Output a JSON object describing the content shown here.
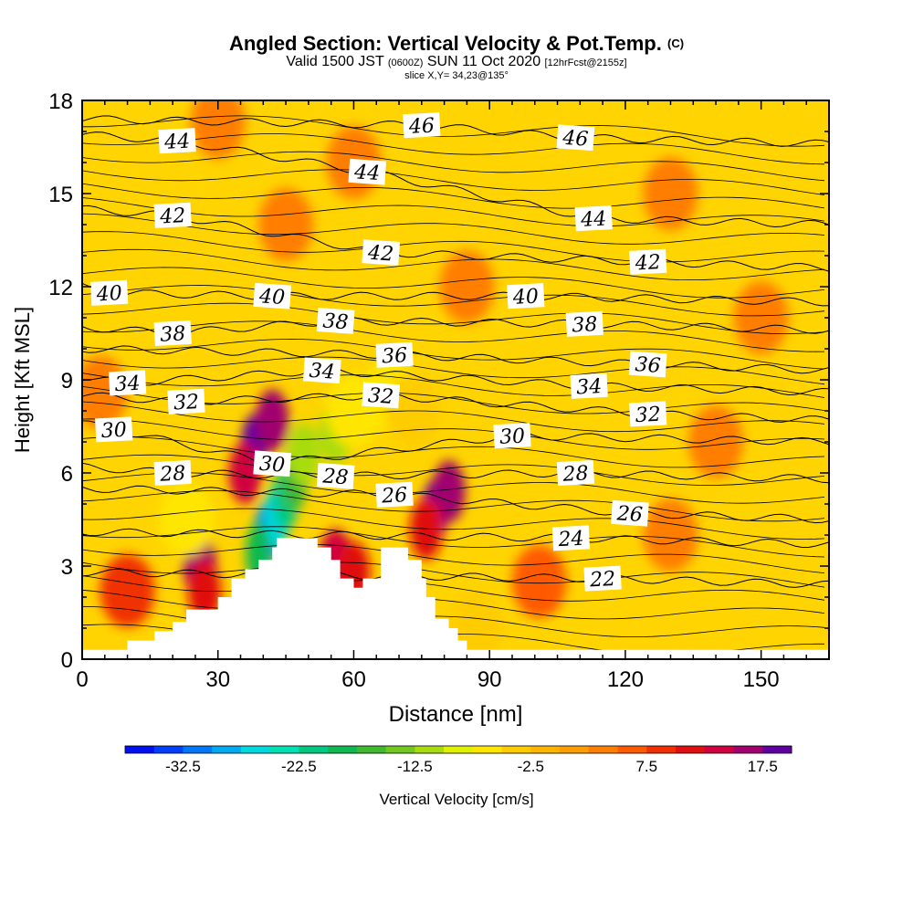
{
  "title": {
    "main": "Angled Section: Vertical Velocity & Pot.Temp.",
    "main_suffix": "(C)",
    "valid_prefix": "Valid 1500 JST",
    "valid_utc": "(0600Z)",
    "valid_date": "SUN 11 Oct 2020",
    "forecast": "[12hrFcst@2155z]",
    "slice": "slice X,Y= 34,23@135°"
  },
  "chart_data": {
    "type": "heatmap",
    "xlabel": "Distance [nm]",
    "ylabel": "Height [Kft MSL]",
    "xlim": [
      0,
      165
    ],
    "ylim": [
      0,
      18
    ],
    "x_ticks": [
      "0",
      "30",
      "60",
      "90",
      "120",
      "150"
    ],
    "y_ticks": [
      "0",
      "3",
      "6",
      "9",
      "12",
      "15",
      "18"
    ],
    "colorbar": {
      "label": "Vertical Velocity [cm/s]",
      "ticks": [
        "-32.5",
        "-22.5",
        "-12.5",
        "-2.5",
        "7.5",
        "17.5"
      ],
      "colors": [
        "#0010f0",
        "#0040f8",
        "#0078f8",
        "#00aaf0",
        "#00d8e0",
        "#00e0b0",
        "#00c880",
        "#10b850",
        "#40b830",
        "#70c820",
        "#a8dc10",
        "#e0f000",
        "#ffe600",
        "#ffcc00",
        "#ffb400",
        "#ff9c00",
        "#ff7e00",
        "#ff5a00",
        "#f03000",
        "#e01010",
        "#d00040",
        "#a00070",
        "#6000a0"
      ]
    },
    "terrain_kft": [
      [
        0,
        0.3
      ],
      [
        10,
        0.3
      ],
      [
        10,
        0.6
      ],
      [
        16,
        0.6
      ],
      [
        16,
        0.9
      ],
      [
        20,
        0.9
      ],
      [
        20,
        1.2
      ],
      [
        23,
        1.2
      ],
      [
        23,
        1.6
      ],
      [
        30,
        1.6
      ],
      [
        30,
        2.0
      ],
      [
        33,
        2.0
      ],
      [
        33,
        2.6
      ],
      [
        36,
        2.6
      ],
      [
        36,
        2.9
      ],
      [
        39,
        2.9
      ],
      [
        39,
        3.2
      ],
      [
        42,
        3.2
      ],
      [
        42,
        3.6
      ],
      [
        43,
        3.6
      ],
      [
        43,
        3.9
      ],
      [
        52,
        3.9
      ],
      [
        52,
        3.6
      ],
      [
        55,
        3.6
      ],
      [
        55,
        3.2
      ],
      [
        57,
        3.2
      ],
      [
        57,
        2.6
      ],
      [
        60,
        2.6
      ],
      [
        60,
        2.3
      ],
      [
        62,
        2.3
      ],
      [
        62,
        2.6
      ],
      [
        66,
        2.6
      ],
      [
        66,
        3.6
      ],
      [
        72,
        3.6
      ],
      [
        72,
        3.2
      ],
      [
        75,
        3.2
      ],
      [
        75,
        2.6
      ],
      [
        76,
        2.6
      ],
      [
        76,
        2.0
      ],
      [
        78,
        2.0
      ],
      [
        78,
        1.3
      ],
      [
        81,
        1.3
      ],
      [
        81,
        1.0
      ],
      [
        83,
        1.0
      ],
      [
        83,
        0.6
      ],
      [
        85,
        0.6
      ],
      [
        85,
        0.3
      ],
      [
        165,
        0.3
      ]
    ],
    "theta_contours": [
      {
        "label": "44",
        "pos": [
          [
            21,
            16.7
          ],
          [
            63,
            15.7
          ],
          [
            113,
            14.2
          ]
        ]
      },
      {
        "label": "42",
        "pos": [
          [
            20,
            14.3
          ],
          [
            66,
            13.1
          ],
          [
            125,
            12.8
          ]
        ]
      },
      {
        "label": "40",
        "pos": [
          [
            6,
            11.8
          ],
          [
            42,
            11.7
          ],
          [
            98,
            11.7
          ]
        ]
      },
      {
        "label": "38",
        "pos": [
          [
            20,
            10.5
          ],
          [
            56,
            10.9
          ],
          [
            111,
            10.8
          ]
        ]
      },
      {
        "label": "36",
        "pos": [
          [
            69,
            9.8
          ],
          [
            125,
            9.5
          ]
        ]
      },
      {
        "label": "34",
        "pos": [
          [
            10,
            8.9
          ],
          [
            53,
            9.3
          ],
          [
            112,
            8.8
          ]
        ]
      },
      {
        "label": "32",
        "pos": [
          [
            23,
            8.3
          ],
          [
            66,
            8.5
          ],
          [
            125,
            7.9
          ]
        ]
      },
      {
        "label": "30",
        "pos": [
          [
            7,
            7.4
          ],
          [
            42,
            6.3
          ],
          [
            95,
            7.2
          ]
        ]
      },
      {
        "label": "28",
        "pos": [
          [
            20,
            6.0
          ],
          [
            56,
            5.9
          ],
          [
            109,
            6.0
          ]
        ]
      },
      {
        "label": "26",
        "pos": [
          [
            69,
            5.3
          ],
          [
            121,
            4.7
          ]
        ]
      },
      {
        "label": "24",
        "pos": [
          [
            108,
            3.9
          ]
        ]
      },
      {
        "label": "22",
        "pos": [
          [
            115,
            2.6
          ]
        ]
      },
      {
        "label": "46",
        "pos": [
          [
            75,
            17.2
          ],
          [
            109,
            16.8
          ]
        ]
      }
    ],
    "velocity_cells": [
      {
        "x": 38,
        "y": 6.9,
        "v": 17.5
      },
      {
        "x": 42,
        "y": 7.7,
        "v": 15
      },
      {
        "x": 36,
        "y": 6.0,
        "v": 12.5
      },
      {
        "x": 26,
        "y": 3.0,
        "v": 15
      },
      {
        "x": 27,
        "y": 2.2,
        "v": 12
      },
      {
        "x": 78,
        "y": 4.8,
        "v": 20
      },
      {
        "x": 81,
        "y": 5.4,
        "v": 15
      },
      {
        "x": 76,
        "y": 4.2,
        "v": 12
      },
      {
        "x": 56,
        "y": 3.2,
        "v": 13
      },
      {
        "x": 60,
        "y": 2.8,
        "v": 11
      },
      {
        "x": 10,
        "y": 2.2,
        "v": 7.5
      },
      {
        "x": 101,
        "y": 2.5,
        "v": 6
      },
      {
        "x": 41,
        "y": 4.1,
        "v": -32.5
      },
      {
        "x": 43,
        "y": 4.6,
        "v": -27.5
      },
      {
        "x": 45,
        "y": 5.2,
        "v": -22.5
      },
      {
        "x": 39,
        "y": 3.4,
        "v": -20
      },
      {
        "x": 47,
        "y": 5.8,
        "v": -17.5
      },
      {
        "x": 49,
        "y": 6.6,
        "v": -12.5
      },
      {
        "x": 56,
        "y": 7.3,
        "v": -12.5
      },
      {
        "x": 60,
        "y": 8.0,
        "v": -7.5
      },
      {
        "x": 68,
        "y": 8.5,
        "v": -7.5
      },
      {
        "x": 73,
        "y": 8.0,
        "v": -5
      },
      {
        "x": 23,
        "y": 4.5,
        "v": -7.5
      },
      {
        "x": 87,
        "y": 1.0,
        "v": -5
      },
      {
        "x": 30,
        "y": 17.3,
        "v": 4
      },
      {
        "x": 45,
        "y": 14.0,
        "v": 4
      },
      {
        "x": 60,
        "y": 16.0,
        "v": 3.5
      },
      {
        "x": 85,
        "y": 12.0,
        "v": 3
      },
      {
        "x": 130,
        "y": 15.0,
        "v": 3
      },
      {
        "x": 150,
        "y": 11.0,
        "v": 3
      },
      {
        "x": 4,
        "y": 8.6,
        "v": 4
      },
      {
        "x": 140,
        "y": 7.0,
        "v": 3
      },
      {
        "x": 130,
        "y": 4.0,
        "v": 3
      }
    ]
  }
}
